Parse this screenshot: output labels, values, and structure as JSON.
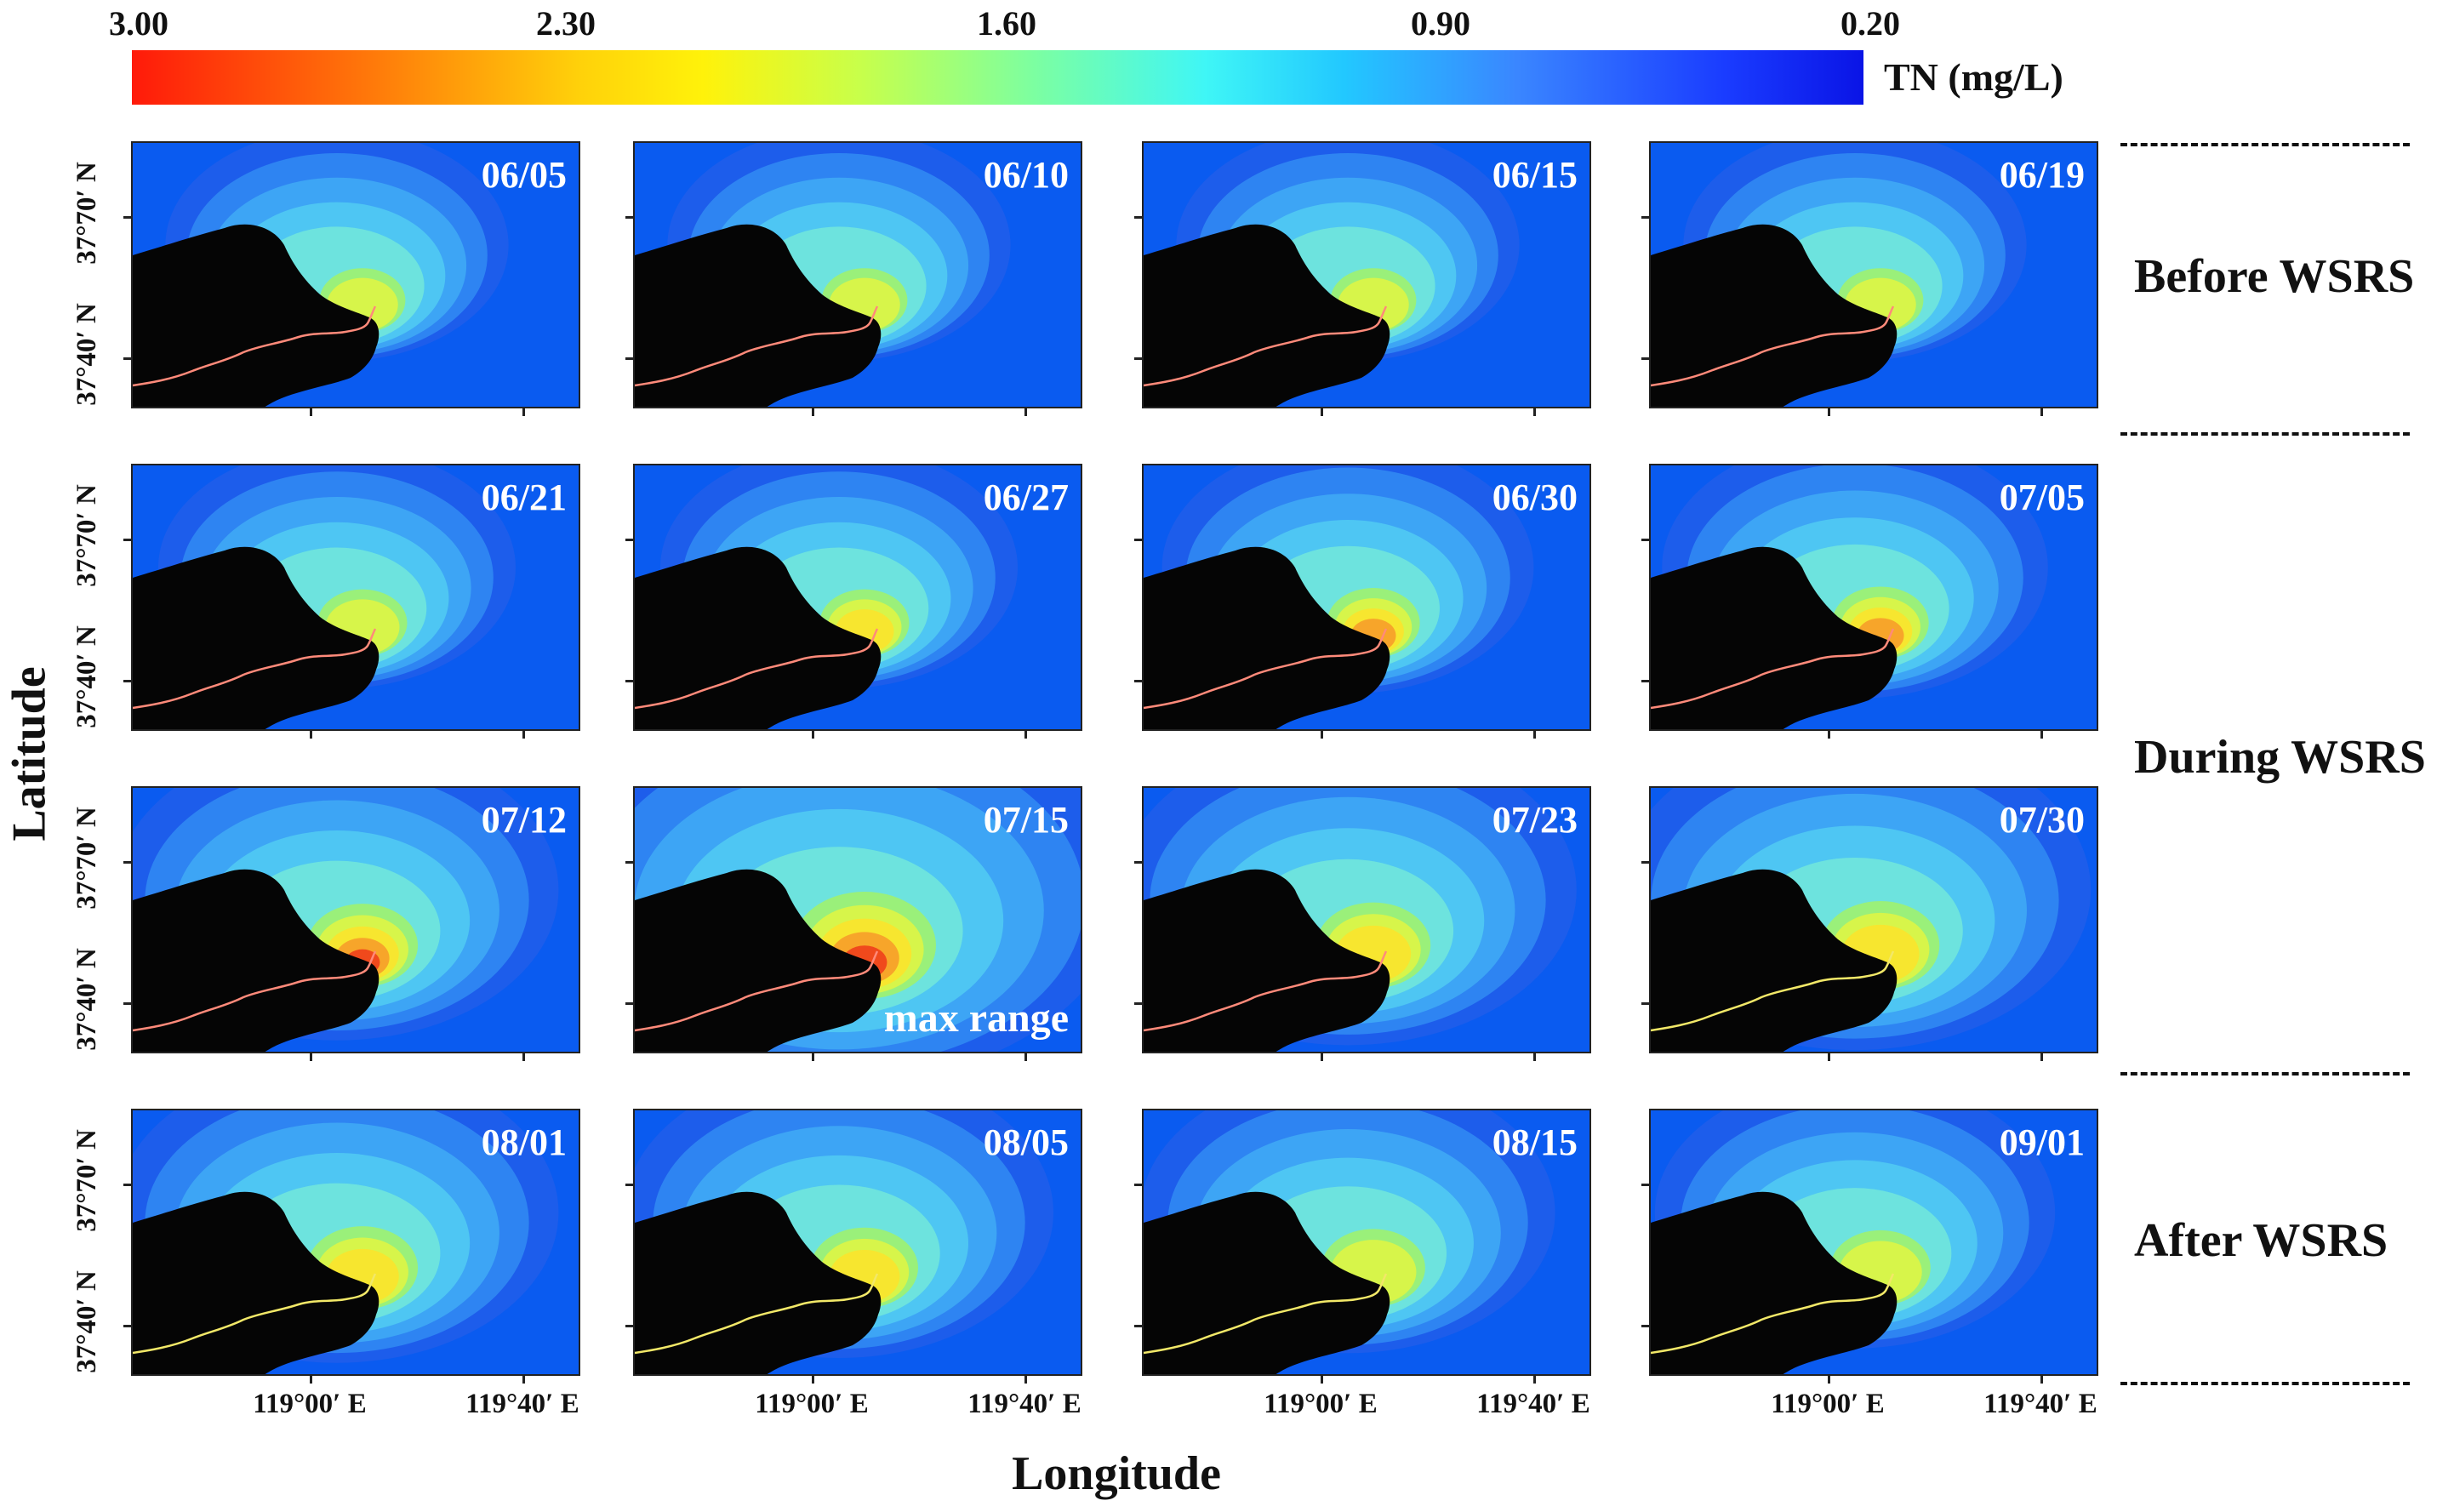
{
  "colorbar": {
    "ticks": [
      "3.00",
      "2.30",
      "1.60",
      "0.90",
      "0.20"
    ],
    "unit": "TN (mg/L)",
    "colors": [
      "#ff1a0a",
      "#ffd20a",
      "#3ff6f6",
      "#3a86ff",
      "#0a14e6"
    ]
  },
  "axes": {
    "ylabel": "Latitude",
    "xlabel": "Longitude",
    "yticks": [
      "37°70′ N",
      "37°40′ N"
    ],
    "xticks": [
      "119°00′ E",
      "119°40′ E"
    ]
  },
  "phases": [
    {
      "label": "Before WSRS"
    },
    {
      "label": "During WSRS"
    },
    {
      "label": "After WSRS"
    }
  ],
  "panels": [
    {
      "date": "06/05",
      "intensity": 0.35,
      "spread": 0.2
    },
    {
      "date": "06/10",
      "intensity": 0.35,
      "spread": 0.2
    },
    {
      "date": "06/15",
      "intensity": 0.35,
      "spread": 0.2
    },
    {
      "date": "06/19",
      "intensity": 0.35,
      "spread": 0.2
    },
    {
      "date": "06/21",
      "intensity": 0.45,
      "spread": 0.25
    },
    {
      "date": "06/27",
      "intensity": 0.6,
      "spread": 0.25
    },
    {
      "date": "06/30",
      "intensity": 0.8,
      "spread": 0.3
    },
    {
      "date": "07/05",
      "intensity": 0.85,
      "spread": 0.35
    },
    {
      "date": "07/12",
      "intensity": 0.9,
      "spread": 0.55
    },
    {
      "date": "07/15",
      "intensity": 1.0,
      "spread": 1.0,
      "note": "max range"
    },
    {
      "date": "07/23",
      "intensity": 0.65,
      "spread": 0.6
    },
    {
      "date": "07/30",
      "intensity": 0.6,
      "spread": 0.65
    },
    {
      "date": "08/01",
      "intensity": 0.55,
      "spread": 0.55
    },
    {
      "date": "08/05",
      "intensity": 0.5,
      "spread": 0.5
    },
    {
      "date": "08/15",
      "intensity": 0.45,
      "spread": 0.45
    },
    {
      "date": "09/01",
      "intensity": 0.35,
      "spread": 0.4
    }
  ]
}
